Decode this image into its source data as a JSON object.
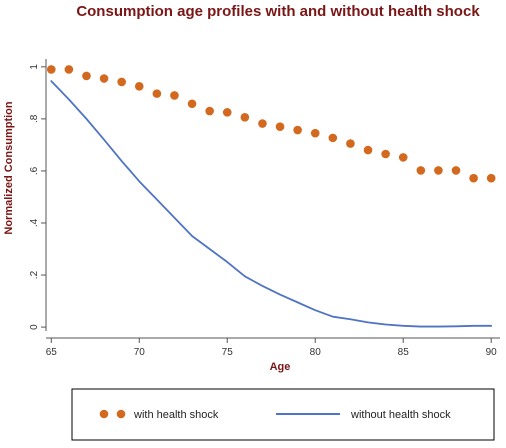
{
  "chart_data": {
    "type": "line",
    "title": "Consumption age profiles with and without health shock",
    "xlabel": "Age",
    "ylabel": "Normalized Consumption",
    "xlim": [
      64.7,
      90.5
    ],
    "ylim": [
      -0.015,
      1.03
    ],
    "x_ticks": [
      65,
      70,
      75,
      80,
      85,
      90
    ],
    "x_tick_labels": [
      "65",
      "70",
      "75",
      "80",
      "85",
      "90"
    ],
    "y_ticks": [
      0,
      0.2,
      0.4,
      0.6,
      0.8,
      1
    ],
    "y_tick_labels": [
      "0",
      ".2",
      ".4",
      ".6",
      ".8",
      "1"
    ],
    "grid": false,
    "legend_position": "bottom",
    "series": [
      {
        "name": "with health shock",
        "style": "dots",
        "color": "#d2691e",
        "x": [
          65,
          66,
          67,
          68,
          69,
          70,
          71,
          72,
          73,
          74,
          75,
          76,
          77,
          78,
          79,
          80,
          81,
          82,
          83,
          84,
          85,
          86,
          87,
          88,
          89,
          90
        ],
        "y": [
          0.99,
          0.99,
          0.965,
          0.955,
          0.942,
          0.925,
          0.897,
          0.89,
          0.858,
          0.83,
          0.825,
          0.806,
          0.782,
          0.77,
          0.757,
          0.745,
          0.727,
          0.705,
          0.68,
          0.665,
          0.652,
          0.602,
          0.602,
          0.602,
          0.572,
          0.572
        ]
      },
      {
        "name": "without health shock",
        "style": "line",
        "color": "#4f74c4",
        "x": [
          65,
          66,
          67,
          68,
          69,
          70,
          71,
          72,
          72.5,
          73,
          74,
          75,
          76,
          77,
          78,
          79,
          80,
          81,
          82,
          83,
          84,
          85,
          86,
          87,
          88,
          89,
          90
        ],
        "y": [
          0.945,
          0.875,
          0.8,
          0.72,
          0.638,
          0.56,
          0.49,
          0.42,
          0.385,
          0.35,
          0.3,
          0.25,
          0.195,
          0.158,
          0.125,
          0.095,
          0.065,
          0.04,
          0.03,
          0.018,
          0.01,
          0.005,
          0.002,
          0.002,
          0.003,
          0.005,
          0.005
        ]
      }
    ]
  }
}
